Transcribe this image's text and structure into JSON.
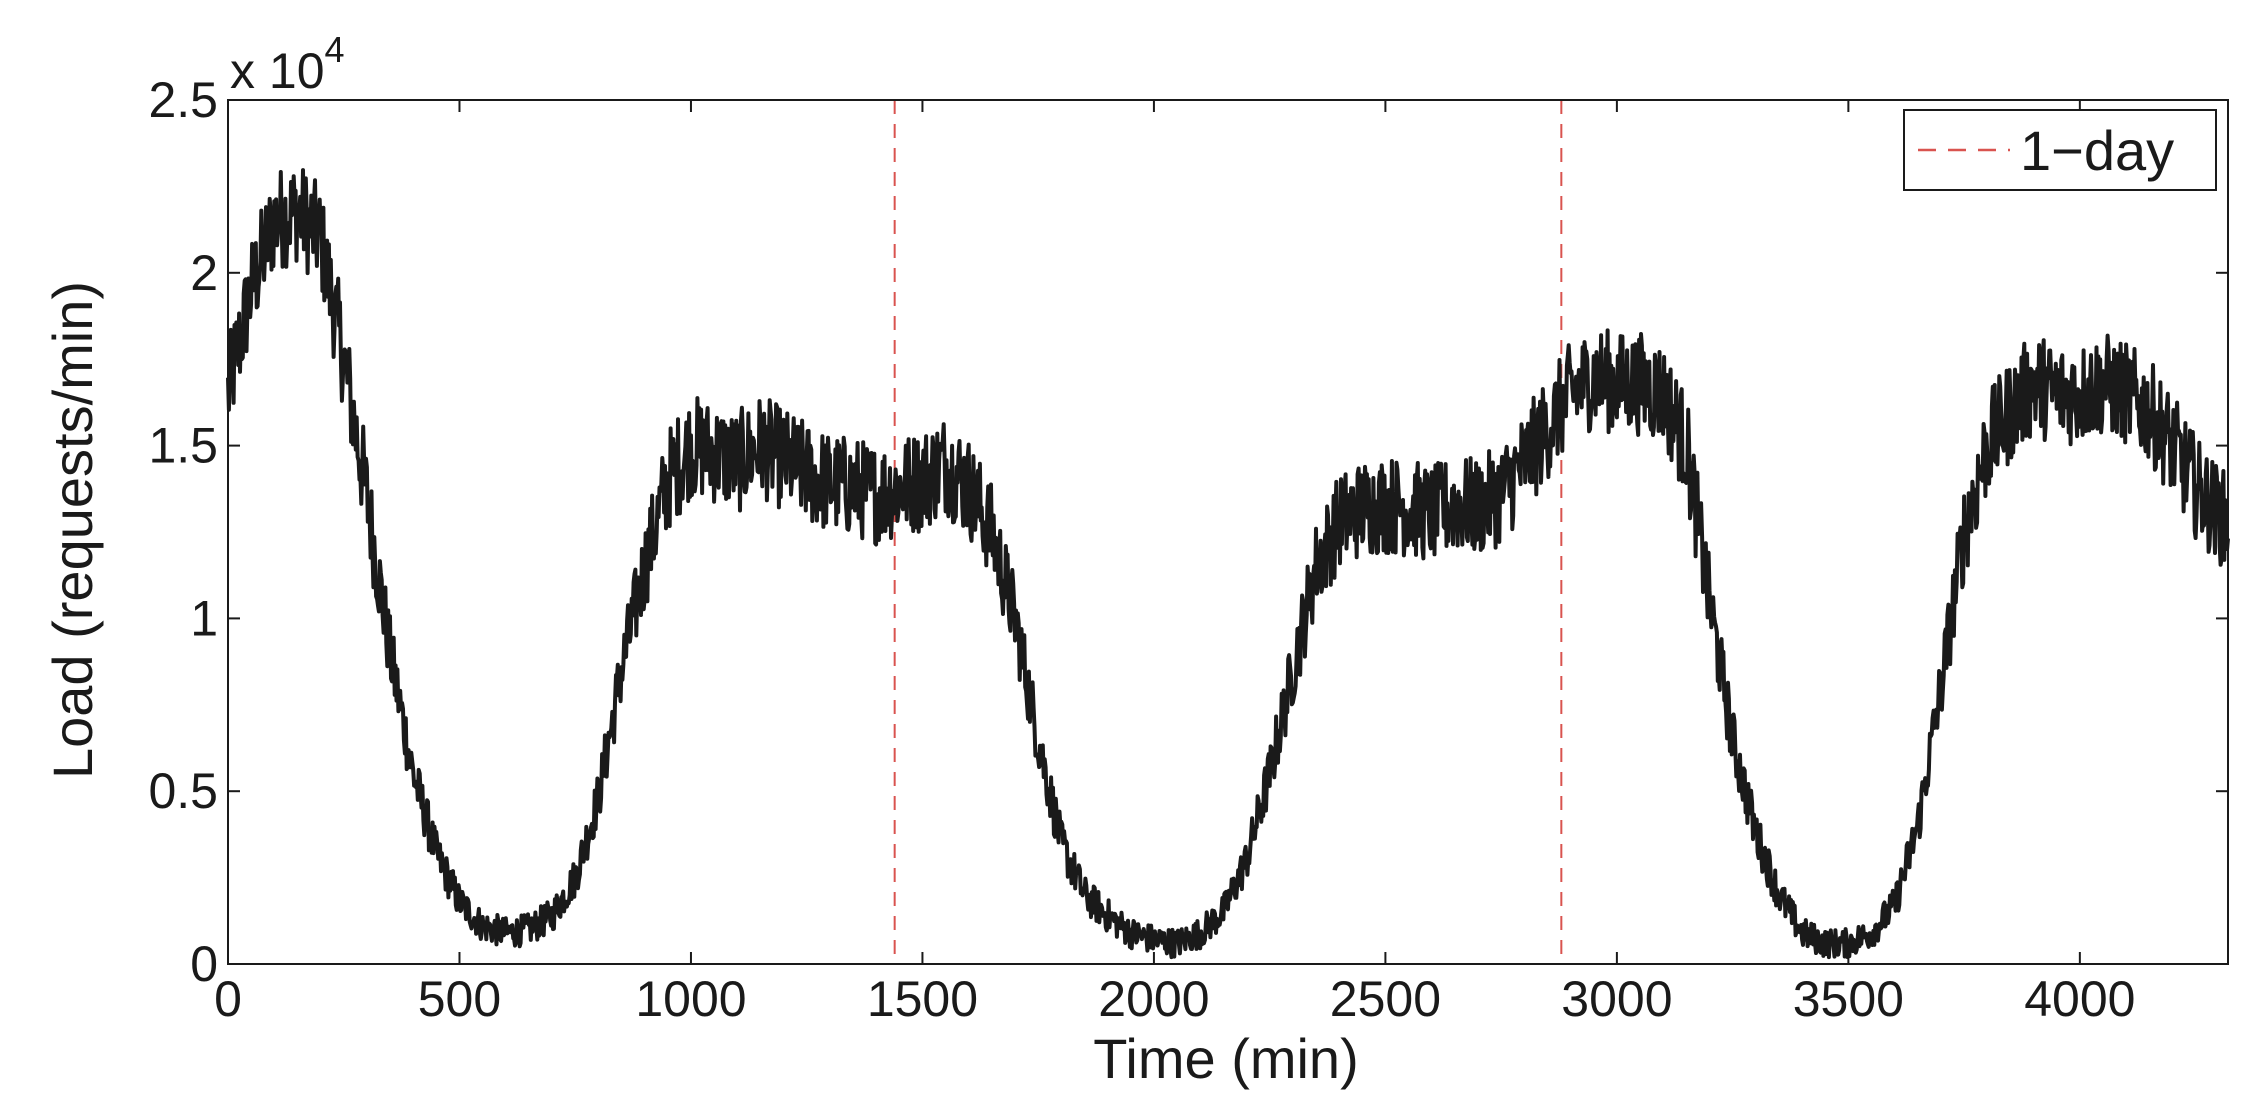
{
  "chart_data": {
    "type": "line",
    "xlabel": "Time (min)",
    "ylabel": "Load (requests/min)",
    "y_exponent_label": "x 10",
    "y_exponent_power": "4",
    "xlim": [
      0,
      4320
    ],
    "ylim": [
      0,
      25000
    ],
    "x_ticks": [
      0,
      500,
      1000,
      1500,
      2000,
      2500,
      3000,
      3500,
      4000
    ],
    "x_tick_labels": [
      "0",
      "500",
      "1000",
      "1500",
      "2000",
      "2500",
      "3000",
      "3500",
      "4000"
    ],
    "y_ticks": [
      0,
      5000,
      10000,
      15000,
      20000,
      25000
    ],
    "y_tick_labels": [
      "0",
      "0.5",
      "1",
      "1.5",
      "2",
      "2.5"
    ],
    "grid": false,
    "legend": {
      "position": "top-right",
      "entries": [
        "1−day"
      ]
    },
    "series": [
      {
        "style": "solid",
        "color": "#1a1a1a",
        "noise_amplitude": 1500,
        "points": [
          [
            0,
            16500
          ],
          [
            50,
            19500
          ],
          [
            100,
            21500
          ],
          [
            150,
            21800
          ],
          [
            200,
            21000
          ],
          [
            250,
            17500
          ],
          [
            300,
            13500
          ],
          [
            350,
            9000
          ],
          [
            400,
            5500
          ],
          [
            450,
            3200
          ],
          [
            500,
            1800
          ],
          [
            550,
            1100
          ],
          [
            600,
            900
          ],
          [
            650,
            1000
          ],
          [
            700,
            1400
          ],
          [
            750,
            2500
          ],
          [
            800,
            4800
          ],
          [
            850,
            8500
          ],
          [
            900,
            11500
          ],
          [
            950,
            14000
          ],
          [
            1000,
            15000
          ],
          [
            1050,
            14800
          ],
          [
            1100,
            14500
          ],
          [
            1150,
            15000
          ],
          [
            1200,
            14600
          ],
          [
            1250,
            14200
          ],
          [
            1300,
            13900
          ],
          [
            1350,
            13800
          ],
          [
            1400,
            13600
          ],
          [
            1450,
            13800
          ],
          [
            1500,
            14000
          ],
          [
            1550,
            14500
          ],
          [
            1600,
            13800
          ],
          [
            1650,
            12500
          ],
          [
            1700,
            10000
          ],
          [
            1750,
            6500
          ],
          [
            1800,
            3500
          ],
          [
            1850,
            2000
          ],
          [
            1900,
            1400
          ],
          [
            1950,
            900
          ],
          [
            2000,
            700
          ],
          [
            2050,
            600
          ],
          [
            2100,
            900
          ],
          [
            2150,
            1500
          ],
          [
            2200,
            3000
          ],
          [
            2250,
            5500
          ],
          [
            2300,
            8500
          ],
          [
            2350,
            11500
          ],
          [
            2400,
            12800
          ],
          [
            2450,
            13200
          ],
          [
            2500,
            13300
          ],
          [
            2550,
            13200
          ],
          [
            2600,
            13000
          ],
          [
            2650,
            13300
          ],
          [
            2700,
            13200
          ],
          [
            2750,
            13600
          ],
          [
            2800,
            14500
          ],
          [
            2850,
            15500
          ],
          [
            2900,
            16500
          ],
          [
            2950,
            17000
          ],
          [
            3000,
            16800
          ],
          [
            3050,
            16800
          ],
          [
            3100,
            16500
          ],
          [
            3150,
            15000
          ],
          [
            3200,
            10500
          ],
          [
            3250,
            6500
          ],
          [
            3300,
            3800
          ],
          [
            3350,
            2000
          ],
          [
            3400,
            900
          ],
          [
            3450,
            600
          ],
          [
            3500,
            600
          ],
          [
            3550,
            900
          ],
          [
            3600,
            1700
          ],
          [
            3650,
            4000
          ],
          [
            3700,
            8000
          ],
          [
            3750,
            12500
          ],
          [
            3800,
            15000
          ],
          [
            3850,
            16000
          ],
          [
            3900,
            16800
          ],
          [
            3950,
            16500
          ],
          [
            4000,
            16500
          ],
          [
            4050,
            16800
          ],
          [
            4100,
            16500
          ],
          [
            4150,
            16000
          ],
          [
            4200,
            15000
          ],
          [
            4250,
            13800
          ],
          [
            4300,
            13000
          ],
          [
            4320,
            12800
          ]
        ]
      },
      {
        "name": "1−day",
        "style": "dashed",
        "color": "#d9534f",
        "x": [
          1440,
          2880
        ]
      }
    ]
  }
}
